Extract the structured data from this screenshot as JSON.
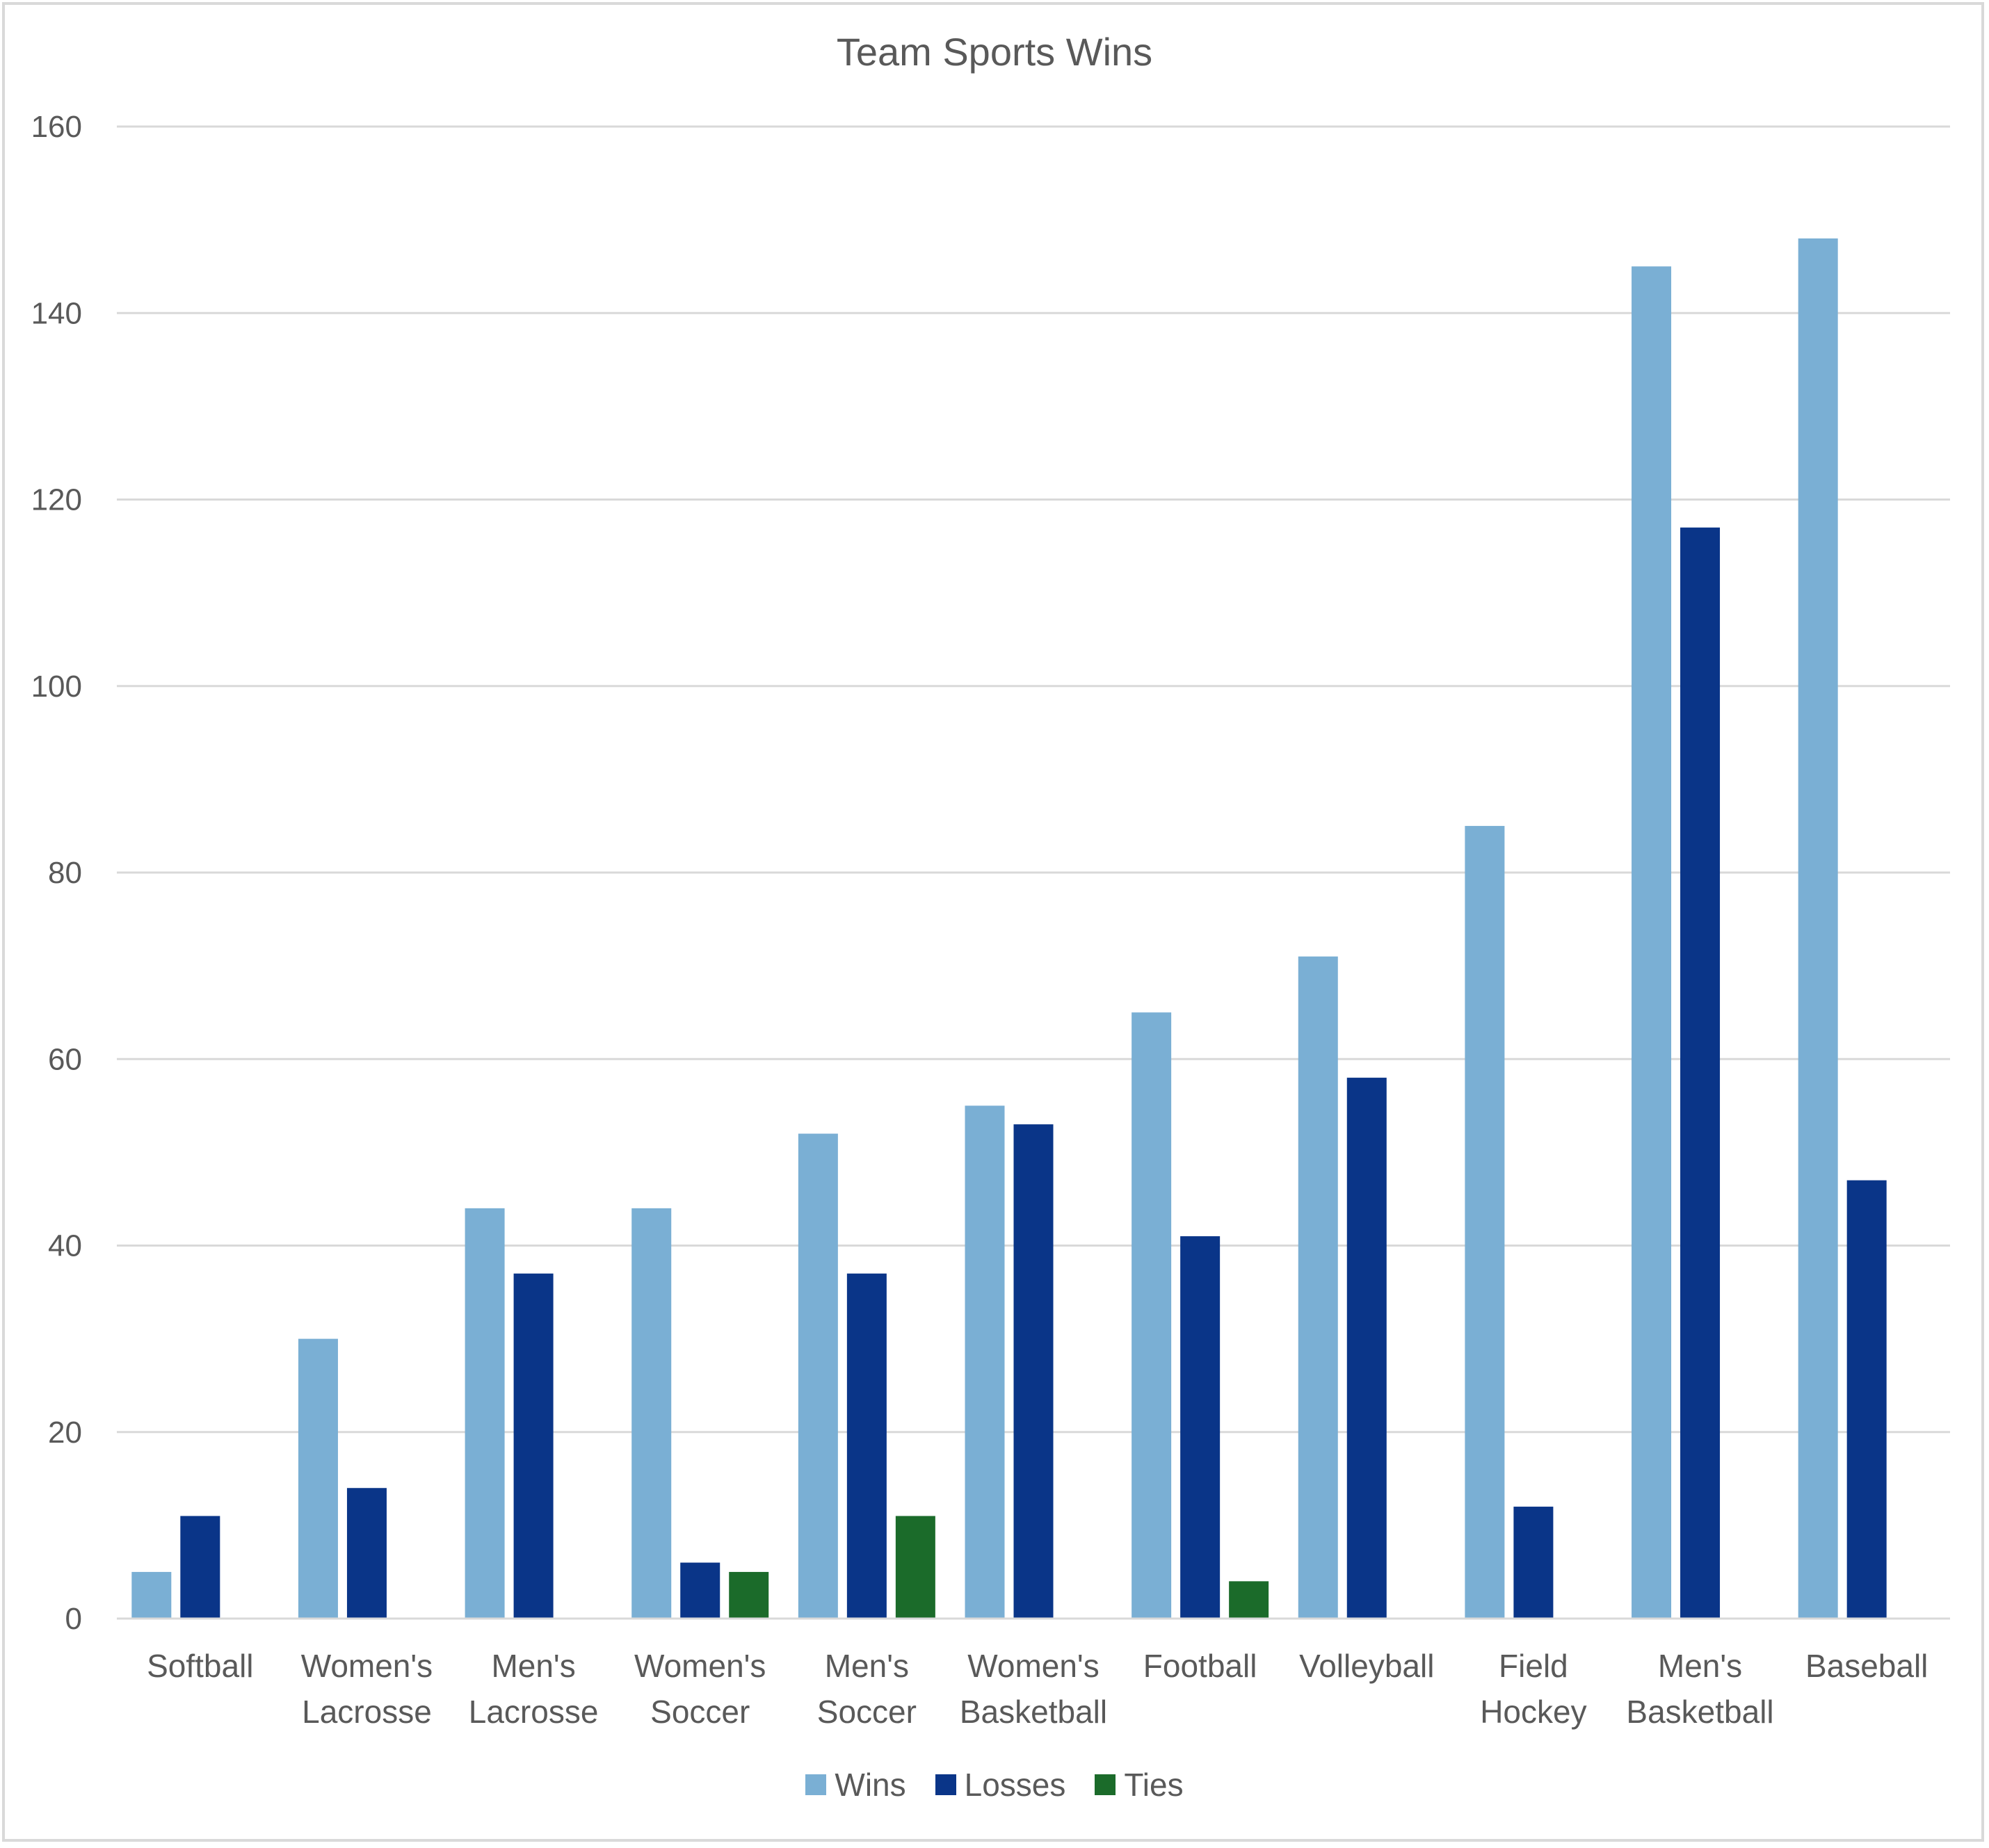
{
  "chart_data": {
    "type": "bar",
    "title": "Team Sports Wins",
    "xlabel": "",
    "ylabel": "",
    "ylim": [
      0,
      160
    ],
    "yticks": [
      0,
      20,
      40,
      60,
      80,
      100,
      120,
      140,
      160
    ],
    "grid": true,
    "legend_position": "bottom",
    "categories": [
      [
        "Softball"
      ],
      [
        "Women's",
        "Lacrosse"
      ],
      [
        "Men's",
        "Lacrosse"
      ],
      [
        "Women's",
        "Soccer"
      ],
      [
        "Men's",
        "Soccer"
      ],
      [
        "Women's",
        "Basketball"
      ],
      [
        "Football"
      ],
      [
        "Volleyball"
      ],
      [
        "Field",
        "Hockey"
      ],
      [
        "Men's",
        "Basketball"
      ],
      [
        "Baseball"
      ]
    ],
    "series": [
      {
        "name": "Wins",
        "color": "#7aafd4",
        "values": [
          5,
          30,
          44,
          44,
          52,
          55,
          65,
          71,
          85,
          145,
          148
        ]
      },
      {
        "name": "Losses",
        "color": "#0a3588",
        "values": [
          11,
          14,
          37,
          6,
          37,
          53,
          41,
          58,
          12,
          117,
          47
        ]
      },
      {
        "name": "Ties",
        "color": "#1b6b2a",
        "values": [
          0,
          0,
          0,
          5,
          11,
          0,
          4,
          0,
          0,
          0,
          0
        ]
      }
    ]
  }
}
